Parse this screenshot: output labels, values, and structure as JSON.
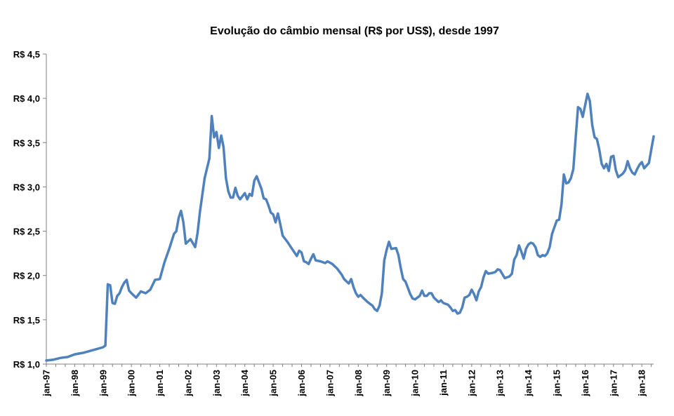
{
  "chart_data": {
    "type": "line",
    "title": "Evolução do câmbio mensal (R$ por US$), desde 1997",
    "xlabel": "",
    "ylabel": "",
    "ylim": [
      1.0,
      4.5
    ],
    "y_ticks": [
      1.0,
      1.5,
      2.0,
      2.5,
      3.0,
      3.5,
      4.0,
      4.5
    ],
    "y_tick_labels": [
      "R$ 1,0",
      "R$ 1,5",
      "R$ 2,0",
      "R$ 2,5",
      "R$ 3,0",
      "R$ 3,5",
      "R$ 4,0",
      "R$ 4,5"
    ],
    "x_tick_labels": [
      "jan-97",
      "jan-98",
      "jan-99",
      "jan-00",
      "jan-01",
      "jan-02",
      "jan-03",
      "jan-04",
      "jan-05",
      "jan-06",
      "jan-07",
      "jan-08",
      "jan-09",
      "jan-10",
      "jan-11",
      "jan-12",
      "jan-13",
      "jan-14",
      "jan-15",
      "jan-16",
      "jan-17",
      "jan-18"
    ],
    "x_start": "jan-97",
    "months_count": 257,
    "line_color": "#4f81bd",
    "series": [
      {
        "name": "R$ por US$",
        "anchors": [
          [
            0,
            1.04
          ],
          [
            3,
            1.05
          ],
          [
            6,
            1.07
          ],
          [
            9,
            1.08
          ],
          [
            12,
            1.11
          ],
          [
            16,
            1.13
          ],
          [
            20,
            1.16
          ],
          [
            24,
            1.19
          ],
          [
            25,
            1.21
          ],
          [
            26,
            1.9
          ],
          [
            27,
            1.89
          ],
          [
            28,
            1.69
          ],
          [
            29,
            1.68
          ],
          [
            30,
            1.77
          ],
          [
            31,
            1.8
          ],
          [
            32,
            1.87
          ],
          [
            33,
            1.92
          ],
          [
            34,
            1.95
          ],
          [
            35,
            1.83
          ],
          [
            36,
            1.8
          ],
          [
            38,
            1.75
          ],
          [
            40,
            1.82
          ],
          [
            42,
            1.8
          ],
          [
            44,
            1.84
          ],
          [
            46,
            1.95
          ],
          [
            48,
            1.96
          ],
          [
            50,
            2.15
          ],
          [
            52,
            2.3
          ],
          [
            54,
            2.47
          ],
          [
            55,
            2.5
          ],
          [
            56,
            2.65
          ],
          [
            57,
            2.73
          ],
          [
            58,
            2.6
          ],
          [
            59,
            2.36
          ],
          [
            61,
            2.41
          ],
          [
            63,
            2.32
          ],
          [
            64,
            2.48
          ],
          [
            65,
            2.72
          ],
          [
            67,
            3.1
          ],
          [
            69,
            3.32
          ],
          [
            70,
            3.8
          ],
          [
            71,
            3.56
          ],
          [
            72,
            3.62
          ],
          [
            73,
            3.44
          ],
          [
            74,
            3.58
          ],
          [
            75,
            3.45
          ],
          [
            76,
            3.1
          ],
          [
            77,
            2.95
          ],
          [
            78,
            2.88
          ],
          [
            79,
            2.88
          ],
          [
            80,
            2.99
          ],
          [
            81,
            2.9
          ],
          [
            82,
            2.86
          ],
          [
            84,
            2.93
          ],
          [
            85,
            2.86
          ],
          [
            86,
            2.92
          ],
          [
            87,
            2.9
          ],
          [
            88,
            3.07
          ],
          [
            89,
            3.12
          ],
          [
            91,
            2.98
          ],
          [
            92,
            2.87
          ],
          [
            93,
            2.86
          ],
          [
            94,
            2.79
          ],
          [
            95,
            2.71
          ],
          [
            96,
            2.69
          ],
          [
            97,
            2.6
          ],
          [
            98,
            2.7
          ],
          [
            99,
            2.58
          ],
          [
            100,
            2.45
          ],
          [
            102,
            2.38
          ],
          [
            104,
            2.3
          ],
          [
            106,
            2.22
          ],
          [
            107,
            2.28
          ],
          [
            108,
            2.26
          ],
          [
            109,
            2.16
          ],
          [
            110,
            2.15
          ],
          [
            111,
            2.13
          ],
          [
            112,
            2.19
          ],
          [
            113,
            2.24
          ],
          [
            114,
            2.17
          ],
          [
            116,
            2.16
          ],
          [
            118,
            2.14
          ],
          [
            119,
            2.16
          ],
          [
            121,
            2.13
          ],
          [
            123,
            2.08
          ],
          [
            125,
            2.01
          ],
          [
            126,
            1.96
          ],
          [
            128,
            1.91
          ],
          [
            129,
            1.96
          ],
          [
            130,
            1.87
          ],
          [
            131,
            1.8
          ],
          [
            132,
            1.76
          ],
          [
            133,
            1.78
          ],
          [
            134,
            1.75
          ],
          [
            136,
            1.7
          ],
          [
            138,
            1.66
          ],
          [
            139,
            1.62
          ],
          [
            140,
            1.6
          ],
          [
            141,
            1.66
          ],
          [
            142,
            1.8
          ],
          [
            143,
            2.17
          ],
          [
            144,
            2.29
          ],
          [
            145,
            2.38
          ],
          [
            146,
            2.3
          ],
          [
            148,
            2.31
          ],
          [
            149,
            2.23
          ],
          [
            150,
            2.08
          ],
          [
            151,
            1.96
          ],
          [
            152,
            1.93
          ],
          [
            153,
            1.86
          ],
          [
            154,
            1.79
          ],
          [
            155,
            1.74
          ],
          [
            156,
            1.73
          ],
          [
            158,
            1.77
          ],
          [
            159,
            1.83
          ],
          [
            160,
            1.77
          ],
          [
            161,
            1.77
          ],
          [
            162,
            1.8
          ],
          [
            163,
            1.8
          ],
          [
            164,
            1.75
          ],
          [
            166,
            1.7
          ],
          [
            167,
            1.72
          ],
          [
            168,
            1.69
          ],
          [
            170,
            1.67
          ],
          [
            171,
            1.64
          ],
          [
            172,
            1.6
          ],
          [
            173,
            1.61
          ],
          [
            174,
            1.57
          ],
          [
            175,
            1.58
          ],
          [
            176,
            1.64
          ],
          [
            177,
            1.75
          ],
          [
            178,
            1.76
          ],
          [
            179,
            1.78
          ],
          [
            180,
            1.84
          ],
          [
            181,
            1.79
          ],
          [
            182,
            1.72
          ],
          [
            183,
            1.82
          ],
          [
            184,
            1.87
          ],
          [
            185,
            1.98
          ],
          [
            186,
            2.05
          ],
          [
            187,
            2.02
          ],
          [
            189,
            2.03
          ],
          [
            190,
            2.04
          ],
          [
            191,
            2.07
          ],
          [
            192,
            2.06
          ],
          [
            194,
            1.97
          ],
          [
            196,
            1.99
          ],
          [
            197,
            2.02
          ],
          [
            198,
            2.18
          ],
          [
            199,
            2.23
          ],
          [
            200,
            2.34
          ],
          [
            201,
            2.27
          ],
          [
            202,
            2.19
          ],
          [
            203,
            2.3
          ],
          [
            204,
            2.35
          ],
          [
            205,
            2.37
          ],
          [
            206,
            2.36
          ],
          [
            207,
            2.32
          ],
          [
            208,
            2.23
          ],
          [
            209,
            2.21
          ],
          [
            210,
            2.23
          ],
          [
            211,
            2.22
          ],
          [
            212,
            2.25
          ],
          [
            213,
            2.32
          ],
          [
            214,
            2.47
          ],
          [
            216,
            2.62
          ],
          [
            217,
            2.63
          ],
          [
            218,
            2.8
          ],
          [
            219,
            3.14
          ],
          [
            220,
            3.04
          ],
          [
            221,
            3.05
          ],
          [
            222,
            3.1
          ],
          [
            223,
            3.2
          ],
          [
            224,
            3.55
          ],
          [
            225,
            3.9
          ],
          [
            226,
            3.88
          ],
          [
            227,
            3.79
          ],
          [
            228,
            3.92
          ],
          [
            229,
            4.05
          ],
          [
            230,
            3.97
          ],
          [
            231,
            3.7
          ],
          [
            232,
            3.56
          ],
          [
            233,
            3.54
          ],
          [
            234,
            3.42
          ],
          [
            235,
            3.26
          ],
          [
            236,
            3.21
          ],
          [
            237,
            3.26
          ],
          [
            238,
            3.18
          ],
          [
            239,
            3.34
          ],
          [
            240,
            3.35
          ],
          [
            241,
            3.19
          ],
          [
            242,
            3.11
          ],
          [
            243,
            3.13
          ],
          [
            244,
            3.15
          ],
          [
            245,
            3.19
          ],
          [
            246,
            3.29
          ],
          [
            247,
            3.21
          ],
          [
            248,
            3.16
          ],
          [
            249,
            3.14
          ],
          [
            250,
            3.2
          ],
          [
            251,
            3.25
          ],
          [
            252,
            3.28
          ],
          [
            253,
            3.21
          ],
          [
            254,
            3.24
          ],
          [
            255,
            3.27
          ],
          [
            256,
            3.42
          ],
          [
            257,
            3.57
          ]
        ]
      }
    ]
  }
}
